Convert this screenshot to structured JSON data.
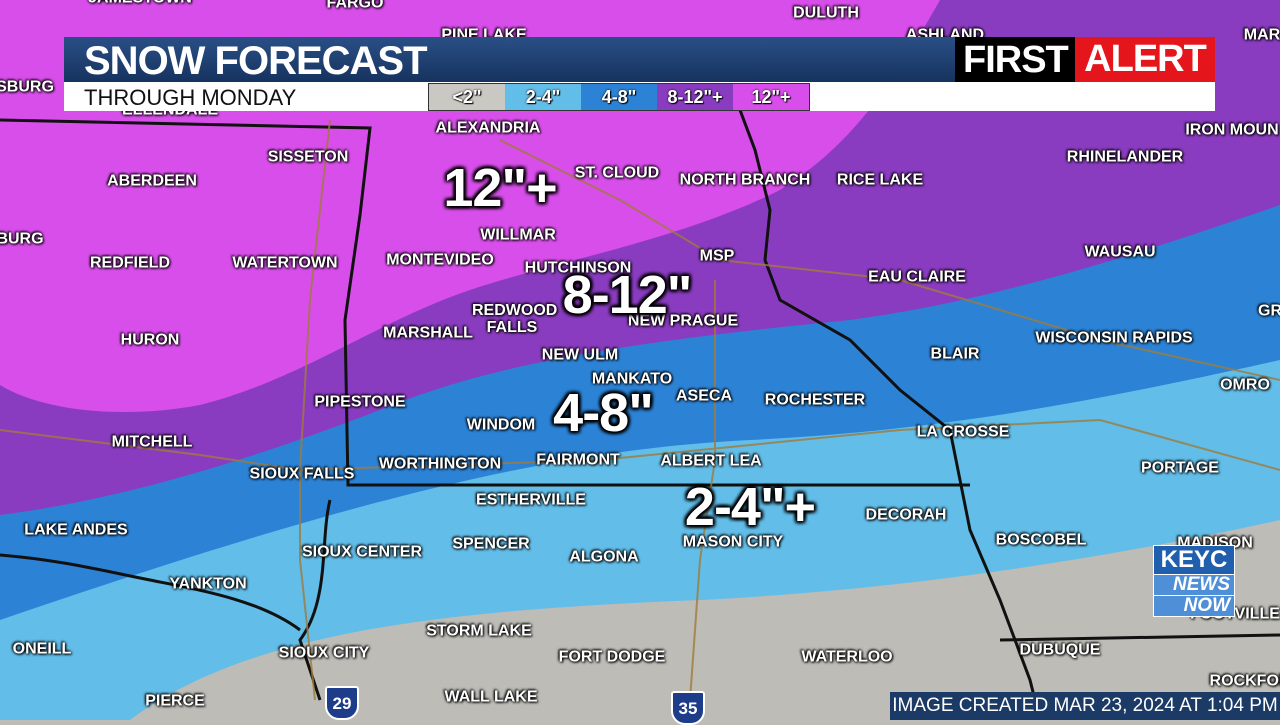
{
  "header": {
    "title": "SNOW FORECAST",
    "subtitle": "THROUGH MONDAY",
    "legend": [
      "<2\"",
      "2-4\"",
      "4-8\"",
      "8-12\"+",
      "12\"+"
    ],
    "brand": [
      "FIRST",
      "ALERT"
    ]
  },
  "zones": [
    "12\"+",
    "8-12\"",
    "4-8\"",
    "2-4\"+"
  ],
  "cities": [
    "JAMESTOWN",
    "FARGO",
    "DULUTH",
    "PINE LAKE",
    "ASHLAND",
    "MAR",
    "SBURG",
    "ELLENDALE",
    "ALEXANDRIA",
    "IRON MOUN",
    "SISSETON",
    "ST. CLOUD",
    "NORTH BRANCH",
    "RICE LAKE",
    "RHINELANDER",
    "ABERDEEN",
    "BURG",
    "WILLMAR",
    "MSP",
    "WAUSAU",
    "REDFIELD",
    "WATERTOWN",
    "MONTEVIDEO",
    "HUTCHINSON",
    "EAU CLAIRE",
    "GR",
    "REDWOOD FALLS",
    "MARSHALL",
    "NEW PRAGUE",
    "HURON",
    "WISCONSIN RAPIDS",
    "BLAIR",
    "NEW ULM",
    "MANKATO",
    "ASECA",
    "ROCHESTER",
    "OMRO",
    "PIPESTONE",
    "WINDOM",
    "LA CROSSE",
    "MITCHELL",
    "SIOUX FALLS",
    "WORTHINGTON",
    "FAIRMONT",
    "ALBERT LEA",
    "PORTAGE",
    "ESTHERVILLE",
    "DECORAH",
    "LAKE ANDES",
    "SIOUX CENTER",
    "SPENCER",
    "ALGONA",
    "MASON CITY",
    "BOSCOBEL",
    "MADISON",
    "YANKTON",
    "FOOTVILLE",
    "STORM LAKE",
    "ONEILL",
    "SIOUX CITY",
    "FORT DODGE",
    "WATERLOO",
    "DUBUQUE",
    "ROCKFOR",
    "PIERCE",
    "WALL LAKE"
  ],
  "interstates": [
    "29",
    "35"
  ],
  "footer": "IMAGE CREATED MAR 23, 2024  AT 1:04 PM",
  "logo": [
    "KEYC",
    "NEWS",
    "NOW"
  ]
}
